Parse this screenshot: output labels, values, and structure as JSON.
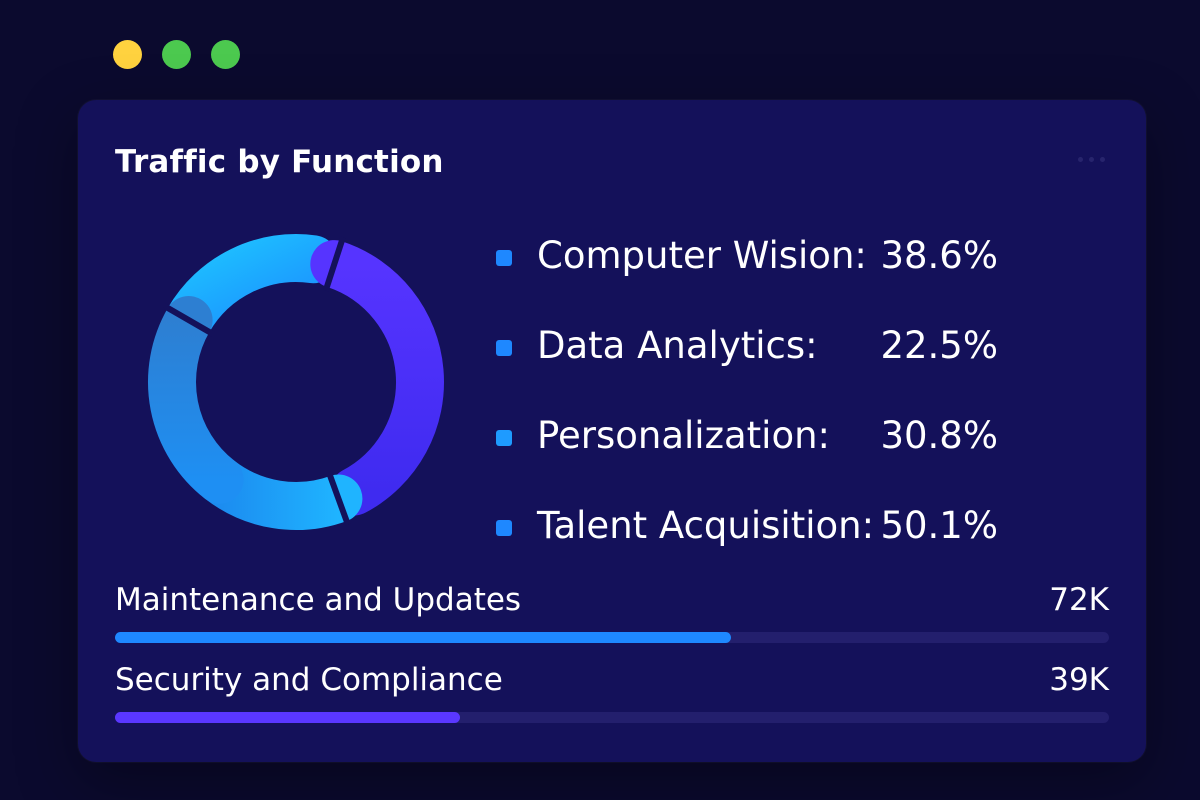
{
  "window": {
    "dots": [
      {
        "name": "yellow-dot",
        "color": "#ffd23f"
      },
      {
        "name": "green-dot",
        "color": "#4cc94f"
      },
      {
        "name": "green-dot-2",
        "color": "#4cc94f"
      }
    ]
  },
  "card": {
    "title": "Traffic by Function"
  },
  "chart_data": {
    "type": "pie",
    "variant": "donut",
    "categories": [
      "Computer Wision",
      "Data Analytics",
      "Personalization",
      "Talent Acquisition"
    ],
    "values": [
      38.6,
      22.5,
      30.8,
      50.1
    ],
    "value_labels": [
      "38.6%",
      "22.5%",
      "30.8%",
      "50.1%"
    ],
    "colors": [
      "#1aa6ff",
      "#4a2bff",
      "#1b8ef2",
      "#2b7fd6"
    ],
    "legend_colors": [
      "#1e88ff",
      "#1e88ff",
      "#1e9bff",
      "#1e88ff"
    ],
    "legend_placement": "right",
    "legend": [
      {
        "label": "Computer Wision:",
        "value": "38.6%"
      },
      {
        "label": "Data Analytics:",
        "value": "22.5%"
      },
      {
        "label": "Personalization:",
        "value": "30.8%"
      },
      {
        "label": "Talent Acquisition:",
        "value": "50.1%"
      }
    ]
  },
  "metrics": [
    {
      "label": "Maintenance and Updates",
      "value": "72K",
      "fraction": 0.62,
      "color": "#1e88ff"
    },
    {
      "label": "Security and Compliance",
      "value": "39K",
      "fraction": 0.347,
      "color": "#5a37ff"
    }
  ]
}
